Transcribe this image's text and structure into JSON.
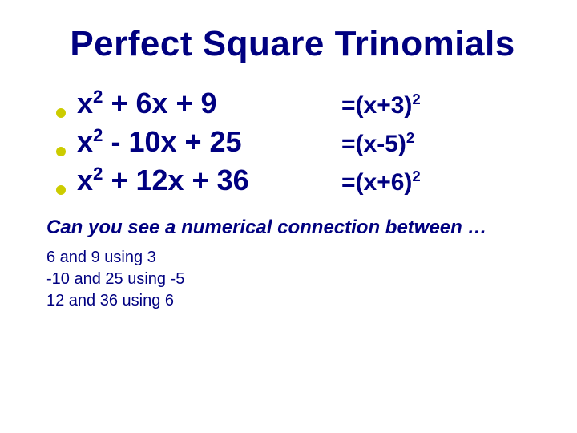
{
  "slide": {
    "title": "Perfect Square Trinomials",
    "background_color": "#ffffff",
    "text_color": "#000080",
    "bullet_color": "#cccc00",
    "title_fontsize": 44,
    "lhs_fontsize": 36,
    "rhs_fontsize": 30,
    "question_fontsize": 24,
    "connection_fontsize": 20,
    "trinomials": [
      {
        "lhs_html": "x<sup>2</sup> + 6x + 9",
        "rhs_html": "=(x+3)<sup>2</sup>"
      },
      {
        "lhs_html": "x<sup>2</sup> - 10x + 25",
        "rhs_html": "=(x-5)<sup>2</sup>"
      },
      {
        "lhs_html": "x<sup>2</sup> + 12x + 36",
        "rhs_html": "=(x+6)<sup>2</sup>"
      }
    ],
    "question": "Can you see a numerical connection between …",
    "connections": [
      "6 and 9 using 3",
      "-10 and 25 using -5",
      "12 and 36 using 6"
    ]
  }
}
